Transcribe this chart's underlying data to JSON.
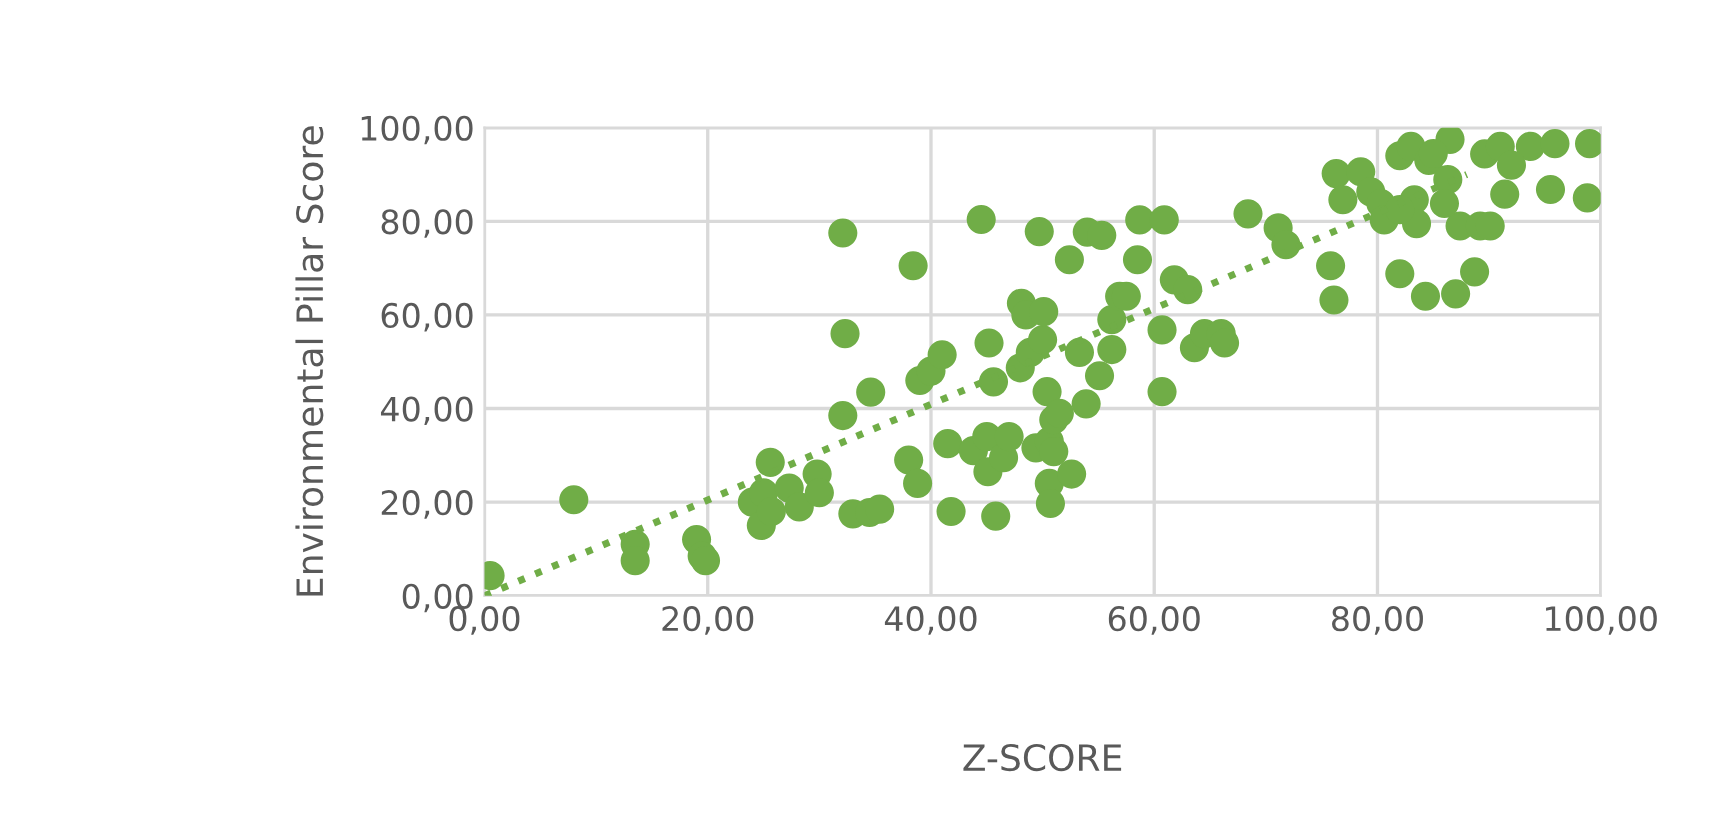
{
  "chart_data": {
    "type": "scatter",
    "xlabel": "Z-SCORE",
    "ylabel": "Environmental Pillar Score",
    "xlim": [
      0,
      100
    ],
    "ylim": [
      0,
      100
    ],
    "xticks": [
      {
        "value": 0,
        "label": "0,00"
      },
      {
        "value": 20,
        "label": "20,00"
      },
      {
        "value": 40,
        "label": "40,00"
      },
      {
        "value": 60,
        "label": "60,00"
      },
      {
        "value": 80,
        "label": "80,00"
      },
      {
        "value": 100,
        "label": "100,00"
      }
    ],
    "yticks": [
      {
        "value": 0,
        "label": "0,00"
      },
      {
        "value": 20,
        "label": "20,00"
      },
      {
        "value": 40,
        "label": "40,00"
      },
      {
        "value": 60,
        "label": "60,00"
      },
      {
        "value": 80,
        "label": "80,00"
      },
      {
        "value": 100,
        "label": "100,00"
      }
    ],
    "grid": true,
    "legend": false,
    "series": [
      {
        "color": "#70ad47",
        "marker": "circle",
        "x": [
          0.5,
          8,
          13.5,
          13.5,
          19,
          19.5,
          19.8,
          24,
          24.8,
          25,
          25.7,
          25.6,
          27.3,
          28.2,
          29.8,
          30,
          32.1,
          32.3,
          32.1,
          33,
          34.5,
          35.4,
          34.6,
          38.4,
          38,
          38.8,
          39,
          40,
          41,
          41.8,
          41.5,
          44.5,
          43.8,
          45,
          45.1,
          45.6,
          45.2,
          45.8,
          46.5,
          47,
          48,
          48.1,
          48.5,
          48.9,
          49.4,
          49.7,
          50,
          50.1,
          50.4,
          50.6,
          50.6,
          50.7,
          51,
          51,
          51.5,
          52.4,
          52.6,
          53.3,
          53.9,
          54,
          55.3,
          55.1,
          56.2,
          56.2,
          56.9,
          57.5,
          58.5,
          58.7,
          60.9,
          60.7,
          60.7,
          61.8,
          63,
          63.6,
          64.5,
          66,
          66.3,
          68.4,
          71.1,
          71.8,
          75.8,
          76.1,
          76.3,
          78.5,
          76.9,
          79.4,
          80.3,
          80.6,
          82,
          83,
          86.5,
          84.6,
          83.3,
          83.5,
          82,
          84.3,
          87,
          88.7,
          87.4,
          89.2,
          90.1,
          89.6,
          91,
          93.7,
          95.9,
          99,
          95.5,
          98.8,
          91.4,
          92,
          85,
          86.3,
          86,
          82
        ],
        "values": [
          4.3,
          20.5,
          11,
          7.5,
          12,
          8.5,
          7.5,
          20,
          15,
          22,
          18,
          28.5,
          23,
          19,
          26,
          22,
          77.5,
          56,
          38.5,
          17.5,
          17.8,
          18.5,
          43.5,
          70.5,
          29,
          24,
          46,
          48,
          51.5,
          18,
          32.5,
          80.4,
          31,
          34,
          26.5,
          45.7,
          54,
          17,
          29.5,
          34,
          48.7,
          62.5,
          60,
          52,
          31.6,
          77.8,
          54.7,
          60.7,
          43.6,
          33,
          24,
          19.7,
          37.6,
          30.8,
          39,
          71.8,
          26,
          52,
          41,
          77.7,
          77,
          47,
          52.6,
          59,
          64,
          64,
          71.8,
          80.3,
          80.3,
          56.8,
          43.6,
          67.5,
          65.4,
          53,
          56,
          56,
          54,
          81.6,
          78.6,
          75,
          70.5,
          63.2,
          90.2,
          90.6,
          84.6,
          86.3,
          83.8,
          80.3,
          94,
          96,
          97.5,
          93,
          84.6,
          79.5,
          68.8,
          64,
          64.5,
          69.2,
          79,
          79,
          79,
          94.4,
          96,
          96,
          96.6,
          96.6,
          86.8,
          85,
          85.8,
          92,
          94.5,
          88.9,
          83.8,
          82.5
        ]
      },
      {
        "type": "line",
        "color": "#70ad47",
        "line_style": "dotted",
        "marker": "none",
        "x": [
          0,
          88
        ],
        "values": [
          0,
          90
        ]
      }
    ]
  }
}
